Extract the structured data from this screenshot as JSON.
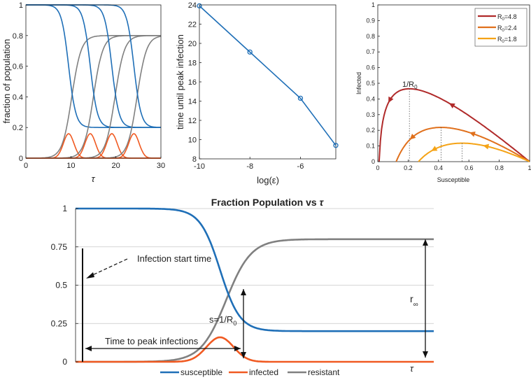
{
  "colors": {
    "susceptible": "#1f6fb7",
    "infected": "#f05a22",
    "resistant": "#808080",
    "r0_high": "#b02a2a",
    "r0_mid": "#e0701c",
    "r0_low": "#f5a316"
  },
  "chart_data": [
    {
      "id": "p1",
      "type": "line",
      "title": "",
      "xlabel": "τ",
      "ylabel": "fraction of population",
      "xlim": [
        0,
        30
      ],
      "ylim": [
        0,
        1
      ],
      "xticks": [
        "0",
        "10",
        "20",
        "30"
      ],
      "yticks": [
        "0",
        "0.2",
        "0.4",
        "0.6",
        "0.8",
        "1"
      ],
      "grid": false,
      "model": {
        "s_final": 0.2,
        "r_final": 0.8,
        "peak_infected": 0.16,
        "crossing_times": [
          9.5,
          14.3,
          19.1,
          24.0
        ]
      },
      "series": [
        {
          "kind": "susceptible",
          "values": [
            1,
            1,
            0.6,
            0.2,
            0.2
          ],
          "x": [
            0,
            6,
            9.5,
            14,
            30
          ]
        },
        {
          "kind": "infected",
          "values": [
            0,
            0.16,
            0
          ],
          "x": [
            5,
            9.5,
            14
          ]
        },
        {
          "kind": "resistant",
          "values": [
            0,
            0.4,
            0.8
          ],
          "x": [
            6,
            11,
            30
          ]
        }
      ]
    },
    {
      "id": "p2",
      "type": "line",
      "title": "",
      "xlabel": "log(ε)",
      "ylabel": "time until peak infection",
      "xlim": [
        -10,
        -4.6
      ],
      "ylim": [
        8,
        24
      ],
      "xticks": [
        "-10",
        "-8",
        "-6"
      ],
      "yticks": [
        "8",
        "10",
        "12",
        "14",
        "16",
        "18",
        "20",
        "22",
        "24"
      ],
      "grid": false,
      "x": [
        -10,
        -8,
        -6,
        -4.6
      ],
      "values": [
        23.9,
        19.1,
        14.3,
        9.4
      ]
    },
    {
      "id": "p3",
      "type": "line",
      "title": "",
      "xlabel": "Susceptible",
      "ylabel": "Infected",
      "xlim": [
        0,
        1
      ],
      "ylim": [
        0,
        1
      ],
      "xticks": [
        "0",
        "0.2",
        "0.4",
        "0.6",
        "0.8",
        "1"
      ],
      "yticks": [
        "0",
        "0.1",
        "0.2",
        "0.3",
        "0.4",
        "0.5",
        "0.6",
        "0.7",
        "0.8",
        "0.9",
        "1"
      ],
      "grid": false,
      "legend": "top-right",
      "annotation": "1/R",
      "annotation_sub": "0",
      "series": [
        {
          "name": "R",
          "sub": "0",
          "value_label": "=4.8",
          "r0": 4.8,
          "color_key": "r0_high"
        },
        {
          "name": "R",
          "sub": "0",
          "value_label": "=2.4",
          "r0": 2.4,
          "color_key": "r0_mid"
        },
        {
          "name": "R",
          "sub": "0",
          "value_label": "=1.8",
          "r0": 1.8,
          "color_key": "r0_low"
        }
      ]
    },
    {
      "id": "p4",
      "type": "line",
      "title": "Fraction Population vs ",
      "title_symbol": "τ",
      "xlabel": "τ",
      "ylabel": "",
      "xlim": [
        0,
        30
      ],
      "ylim": [
        0,
        1
      ],
      "yticks": [
        "0",
        "0.25",
        "0.5",
        "0.75",
        "1"
      ],
      "grid": true,
      "legend": "bottom",
      "series_labels": {
        "susceptible": "susceptible",
        "infected": "infected",
        "resistant": "resistant"
      },
      "model": {
        "s_final": 0.2,
        "r_final": 0.8,
        "peak_infected": 0.16,
        "peak_time": 12.1,
        "start_time": 0.5
      },
      "annotations": {
        "infection_start": "Infection start time",
        "time_to_peak": "Time to peak infections",
        "s_threshold": "s=1/R",
        "s_threshold_sub": "0",
        "r_inf": "r",
        "r_inf_sub": "∞"
      }
    }
  ]
}
